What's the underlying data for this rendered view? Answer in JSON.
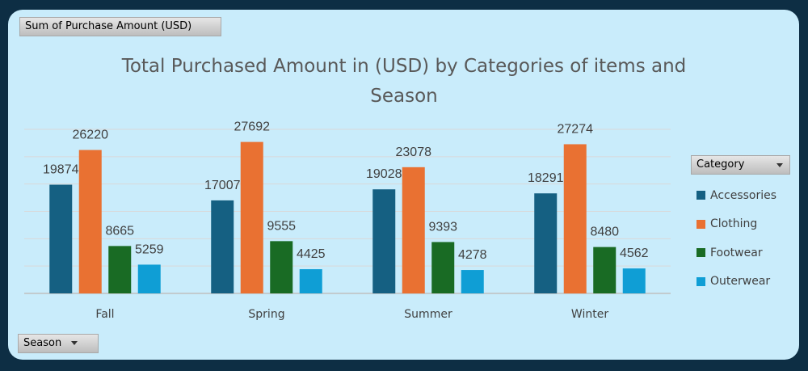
{
  "pivot": {
    "value_field": "Sum of Purchase  Amount (USD)",
    "row_field": "Season",
    "legend_field": "Category"
  },
  "chart_data": {
    "type": "bar",
    "title": "Total Purchased Amount in (USD) by Categories of items and Season",
    "title_lines": [
      "Total Purchased Amount in (USD) by Categories of items and",
      "Season"
    ],
    "categories": [
      "Fall",
      "Spring",
      "Summer",
      "Winter"
    ],
    "series": [
      {
        "name": "Accessories",
        "color": "#156082",
        "values": [
          19874,
          17007,
          19028,
          18291
        ]
      },
      {
        "name": "Clothing",
        "color": "#e97132",
        "values": [
          26220,
          27692,
          23078,
          27274
        ]
      },
      {
        "name": "Footwear",
        "color": "#196b24",
        "values": [
          8665,
          9555,
          9393,
          8480
        ]
      },
      {
        "name": "Outerwear",
        "color": "#0f9ed5",
        "values": [
          5259,
          4425,
          4278,
          4562
        ]
      }
    ],
    "ylim": [
      0,
      30000
    ],
    "grid": true,
    "legend_position": "right",
    "data_labels": true
  }
}
